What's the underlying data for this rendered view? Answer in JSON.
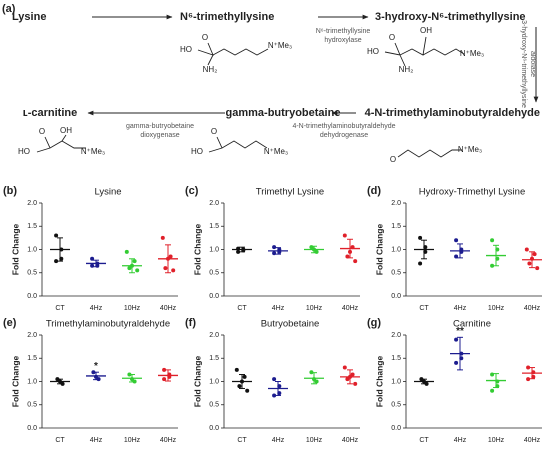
{
  "figure_label": "(a)",
  "pathway": {
    "compounds": [
      {
        "name": "Lysine",
        "atoms": []
      },
      {
        "name": "N⁶-trimethyllysine",
        "atoms": [
          "O",
          "HO",
          "NH₂",
          "N⁺Me₃"
        ]
      },
      {
        "name": "3-hydroxy-N⁶-trimethyllysine",
        "atoms": [
          "O",
          "HO",
          "OH",
          "NH₂",
          "N⁺Me₃"
        ]
      },
      {
        "name": "4-N-trimethylaminobutyraldehyde",
        "atoms": [
          "O",
          "N⁺Me₃"
        ]
      },
      {
        "name": "gamma-butryobetaine",
        "atoms": [
          "O",
          "HO",
          "N⁺Me₃"
        ]
      },
      {
        "name": "ʟ-carnitine",
        "atoms": [
          "O",
          "HO",
          "OH",
          "N⁺Me₃"
        ]
      }
    ],
    "enzymes": [
      {
        "lines": [
          "N⁶-trimethyllysine",
          "hydroxylase"
        ]
      },
      {
        "lines": [
          "3-hydroxy-N⁶-trimethyllysine",
          "aldolase"
        ]
      },
      {
        "lines": [
          "4-N-trimethylaminobutyraldehyde",
          "dehydrogenase"
        ]
      },
      {
        "lines": [
          "gamma-butryobetaine",
          "dioxygenase"
        ]
      }
    ]
  },
  "chart_data": [
    {
      "type": "dot",
      "panel": "(b)",
      "title": "Lysine",
      "ylabel": "Fold Change",
      "categories": [
        "CT",
        "4Hz",
        "10Hz",
        "40Hz"
      ],
      "colors": [
        "#111111",
        "#1c1c8f",
        "#33cc33",
        "#e0202a"
      ],
      "ylim": [
        0,
        2
      ],
      "yticks": [
        {
          "value": 0,
          "label": "0.0"
        },
        0.5,
        {
          "value": 1,
          "label": "1.0"
        },
        1.5,
        {
          "value": 2,
          "label": "2.0"
        }
      ],
      "groups": [
        {
          "points": [
            1.3,
            1.0,
            0.8,
            0.75
          ],
          "mean": 1.0,
          "sd": 0.25
        },
        {
          "points": [
            0.8,
            0.7,
            0.65,
            0.65
          ],
          "mean": 0.7,
          "sd": 0.07
        },
        {
          "points": [
            0.95,
            0.75,
            0.65,
            0.6,
            0.55
          ],
          "mean": 0.65,
          "sd": 0.15
        },
        {
          "points": [
            1.25,
            0.85,
            0.8,
            0.6,
            0.55
          ],
          "mean": 0.8,
          "sd": 0.3
        }
      ],
      "annotations": []
    },
    {
      "type": "dot",
      "panel": "(c)",
      "title": "Trimethyl Lysine",
      "ylabel": "Fold Change",
      "categories": [
        "CT",
        "4Hz",
        "10Hz",
        "40Hz"
      ],
      "colors": [
        "#111111",
        "#1c1c8f",
        "#33cc33",
        "#e0202a"
      ],
      "ylim": [
        0,
        2
      ],
      "yticks": [
        {
          "value": 0,
          "label": "0.0"
        },
        0.5,
        {
          "value": 1,
          "label": "1.0"
        },
        1.5,
        {
          "value": 2,
          "label": "2.0"
        }
      ],
      "groups": [
        {
          "points": [
            1.02,
            1.0,
            0.98,
            0.95
          ],
          "mean": 1.0,
          "sd": 0.05
        },
        {
          "points": [
            1.05,
            1.0,
            0.95,
            0.92
          ],
          "mean": 0.97,
          "sd": 0.07
        },
        {
          "points": [
            1.05,
            1.0,
            0.95
          ],
          "mean": 1.0,
          "sd": 0.07
        },
        {
          "points": [
            1.3,
            1.05,
            0.95,
            0.85,
            0.75
          ],
          "mean": 1.02,
          "sd": 0.2
        }
      ],
      "annotations": []
    },
    {
      "type": "dot",
      "panel": "(d)",
      "title": "Hydroxy-Trimethyl Lysine",
      "ylabel": "Fold Change",
      "categories": [
        "CT",
        "4Hz",
        "10Hz",
        "40Hz"
      ],
      "colors": [
        "#111111",
        "#1c1c8f",
        "#33cc33",
        "#e0202a"
      ],
      "ylim": [
        0,
        2
      ],
      "yticks": [
        {
          "value": 0,
          "label": "0.0"
        },
        0.5,
        {
          "value": 1,
          "label": "1.0"
        },
        1.5,
        {
          "value": 2,
          "label": "2.0"
        }
      ],
      "groups": [
        {
          "points": [
            1.25,
            1.05,
            0.95,
            0.7
          ],
          "mean": 1.0,
          "sd": 0.2
        },
        {
          "points": [
            1.2,
            1.0,
            0.95,
            0.85
          ],
          "mean": 0.97,
          "sd": 0.15
        },
        {
          "points": [
            1.2,
            1.0,
            0.8,
            0.65
          ],
          "mean": 0.87,
          "sd": 0.22
        },
        {
          "points": [
            1.0,
            0.9,
            0.8,
            0.7,
            0.6
          ],
          "mean": 0.78,
          "sd": 0.17
        }
      ],
      "annotations": []
    },
    {
      "type": "dot",
      "panel": "(e)",
      "title": "Trimethylaminobutyraldehyde",
      "ylabel": "Fold Change",
      "categories": [
        "CT",
        "4Hz",
        "10Hz",
        "40Hz"
      ],
      "colors": [
        "#111111",
        "#1c1c8f",
        "#33cc33",
        "#e0202a"
      ],
      "ylim": [
        0,
        2
      ],
      "yticks": [
        {
          "value": 0,
          "label": "0.0"
        },
        0.5,
        {
          "value": 1,
          "label": "1.0"
        },
        1.5,
        {
          "value": 2,
          "label": "2.0"
        }
      ],
      "groups": [
        {
          "points": [
            1.05,
            1.0,
            0.95
          ],
          "mean": 1.0,
          "sd": 0.05
        },
        {
          "points": [
            1.2,
            1.1,
            1.05
          ],
          "mean": 1.12,
          "sd": 0.08
        },
        {
          "points": [
            1.15,
            1.05,
            1.0
          ],
          "mean": 1.07,
          "sd": 0.08
        },
        {
          "points": [
            1.25,
            1.15,
            1.1,
            1.05
          ],
          "mean": 1.13,
          "sd": 0.12
        }
      ],
      "annotations": [
        {
          "category": "4Hz",
          "text": "*"
        }
      ]
    },
    {
      "type": "dot",
      "panel": "(f)",
      "title": "Butryobetaine",
      "ylabel": "Fold Change",
      "categories": [
        "CT",
        "4Hz",
        "10Hz",
        "40Hz"
      ],
      "colors": [
        "#111111",
        "#1c1c8f",
        "#33cc33",
        "#e0202a"
      ],
      "ylim": [
        0,
        2
      ],
      "yticks": [
        {
          "value": 0,
          "label": "0.0"
        },
        0.5,
        {
          "value": 1,
          "label": "1.0"
        },
        1.5,
        {
          "value": 2,
          "label": "2.0"
        }
      ],
      "groups": [
        {
          "points": [
            1.25,
            1.1,
            1.0,
            0.9,
            0.8
          ],
          "mean": 1.0,
          "sd": 0.15
        },
        {
          "points": [
            1.05,
            0.9,
            0.75,
            0.7
          ],
          "mean": 0.85,
          "sd": 0.15
        },
        {
          "points": [
            1.2,
            1.05,
            1.0
          ],
          "mean": 1.07,
          "sd": 0.12
        },
        {
          "points": [
            1.3,
            1.15,
            1.1,
            1.05,
            0.95
          ],
          "mean": 1.1,
          "sd": 0.15
        }
      ],
      "annotations": []
    },
    {
      "type": "dot",
      "panel": "(g)",
      "title": "Carnitine",
      "ylabel": "Fold Change",
      "categories": [
        "CT",
        "4Hz",
        "10Hz",
        "40Hz"
      ],
      "colors": [
        "#111111",
        "#1c1c8f",
        "#33cc33",
        "#e0202a"
      ],
      "ylim": [
        0,
        2
      ],
      "yticks": [
        {
          "value": 0,
          "label": "0.0"
        },
        0.5,
        {
          "value": 1,
          "label": "1.0"
        },
        1.5,
        {
          "value": 2,
          "label": "2.0"
        }
      ],
      "groups": [
        {
          "points": [
            1.05,
            1.0,
            0.95
          ],
          "mean": 1.0,
          "sd": 0.05
        },
        {
          "points": [
            1.9,
            1.6,
            1.5,
            1.4
          ],
          "mean": 1.6,
          "sd": 0.35
        },
        {
          "points": [
            1.15,
            1.0,
            0.9,
            0.8
          ],
          "mean": 1.02,
          "sd": 0.15
        },
        {
          "points": [
            1.3,
            1.2,
            1.1,
            1.05
          ],
          "mean": 1.18,
          "sd": 0.12
        }
      ],
      "annotations": [
        {
          "category": "4Hz",
          "text": "**"
        }
      ]
    }
  ]
}
